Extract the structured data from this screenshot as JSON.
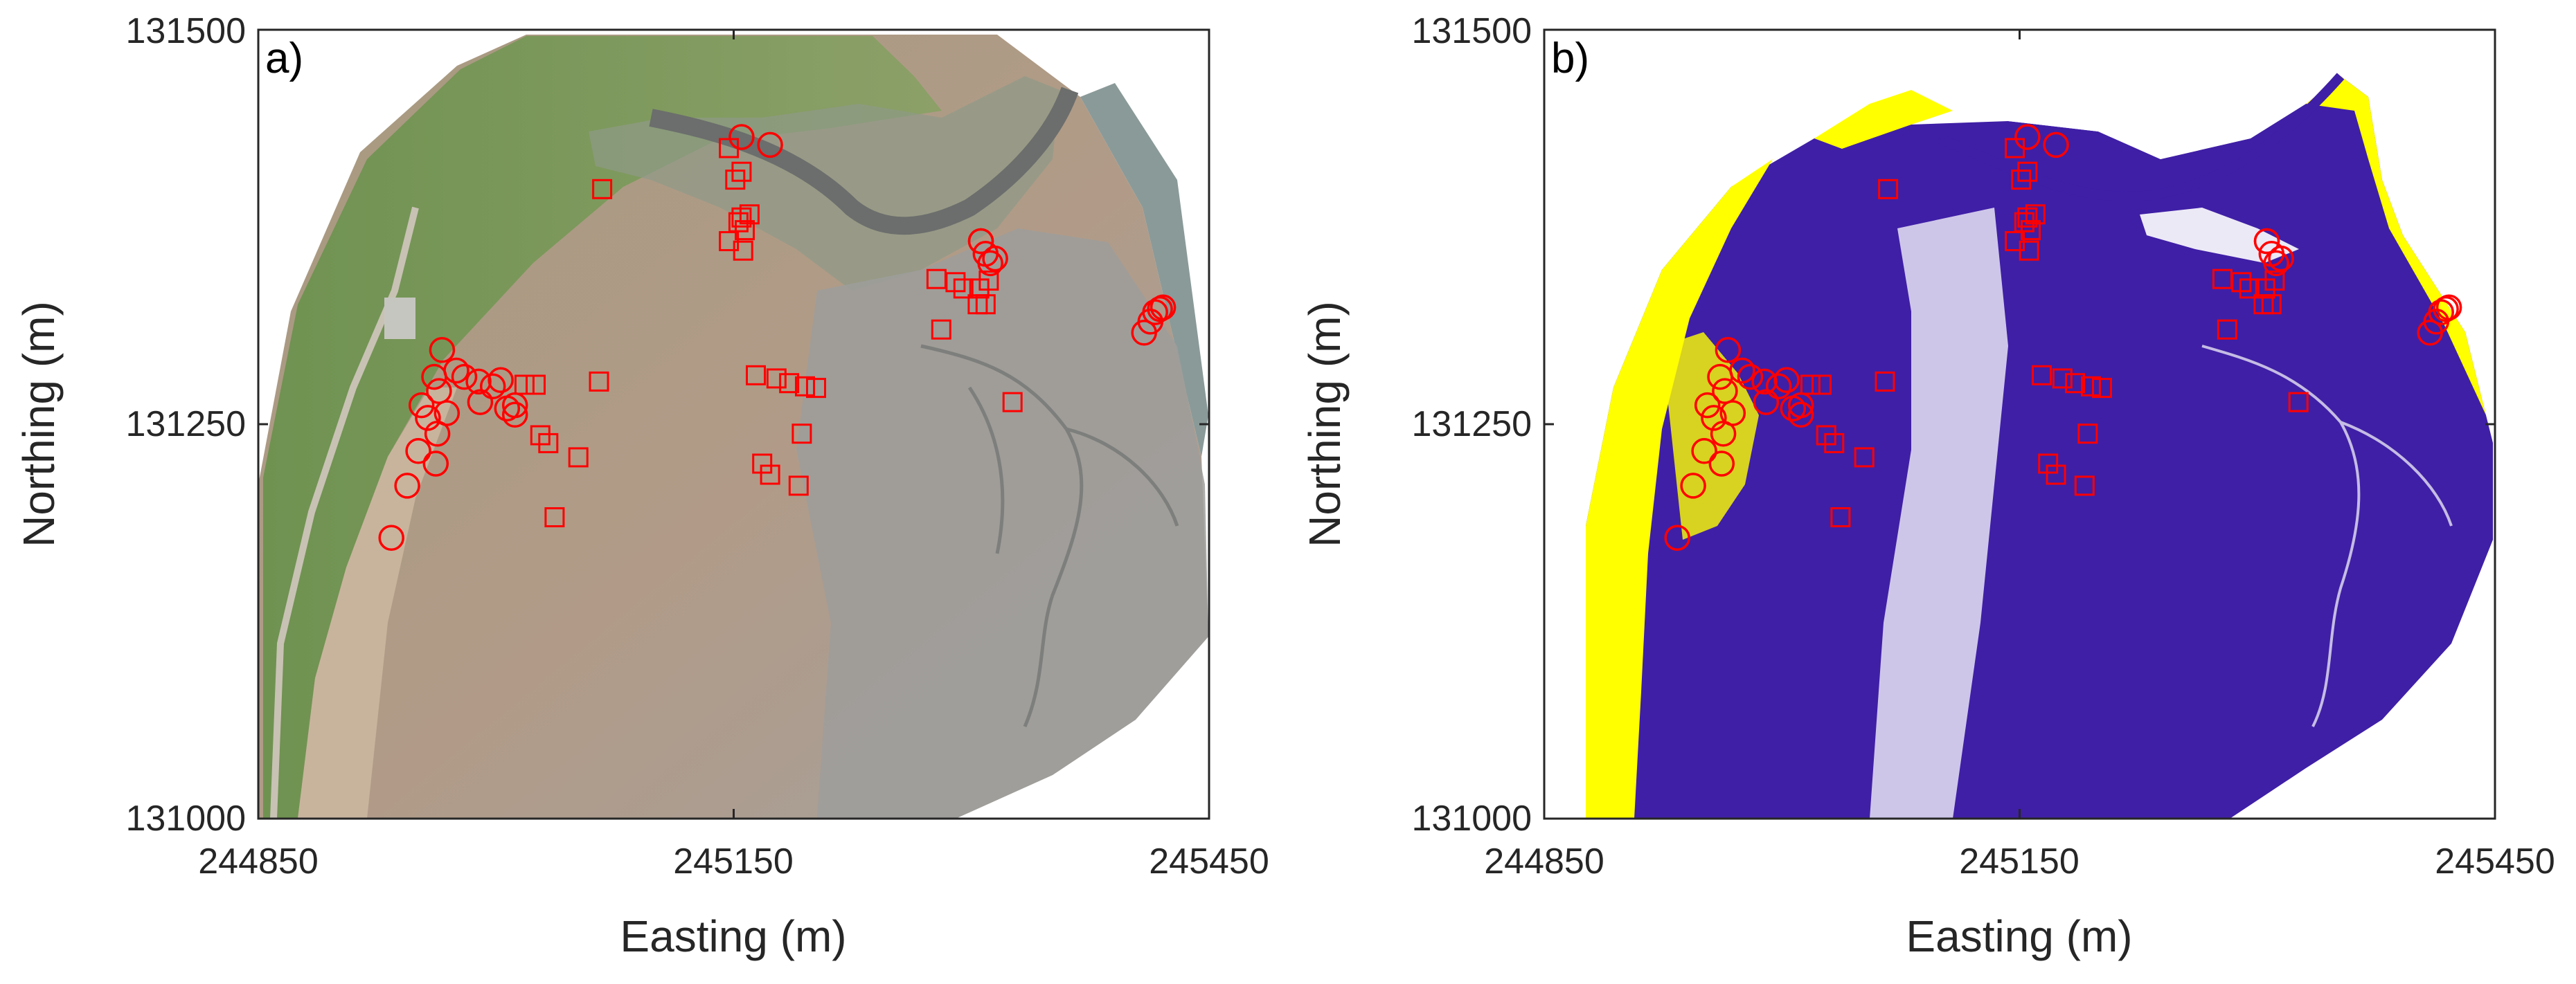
{
  "colors": {
    "marker": "#ff0000",
    "classified_primary": "#3f1fa6",
    "classified_secondary": "#ffff00",
    "photo_sand": "#b59e86",
    "photo_grass": "#7f9a5c",
    "photo_mud": "#9a9a98",
    "photo_water": "#8a9a98"
  },
  "chart_data": [
    {
      "type": "scatter",
      "panel": "a)",
      "background": "aerial photograph (RGB orthomosaic)",
      "xlabel": "Easting (m)",
      "ylabel": "Northing (m)",
      "xlim": [
        244850,
        245450
      ],
      "ylim": [
        131000,
        131500
      ],
      "xticks": [
        "244850",
        "245150",
        "245450"
      ],
      "yticks": [
        "131000",
        "131250",
        "131500"
      ],
      "grid": false,
      "legend": "none"
    },
    {
      "type": "scatter",
      "panel": "b)",
      "background": "classified image (two classes: dark blue and yellow)",
      "xlabel": "Easting (m)",
      "ylabel": "Northing (m)",
      "xlim": [
        244850,
        245450
      ],
      "ylim": [
        131000,
        131500
      ],
      "xticks": [
        "244850",
        "245150",
        "245450"
      ],
      "yticks": [
        "131000",
        "131250",
        "131500"
      ],
      "grid": false,
      "legend": "none"
    }
  ],
  "markers": {
    "circles": [
      [
        244934,
        131178
      ],
      [
        244944,
        131211
      ],
      [
        244951,
        131233
      ],
      [
        244953,
        131262
      ],
      [
        244957,
        131254
      ],
      [
        244961,
        131280
      ],
      [
        244962,
        131225
      ],
      [
        244963,
        131244
      ],
      [
        244964,
        131271
      ],
      [
        244966,
        131297
      ],
      [
        244969,
        131257
      ],
      [
        244975,
        131284
      ],
      [
        244980,
        131280
      ],
      [
        244989,
        131277
      ],
      [
        244990,
        131264
      ],
      [
        244998,
        131274
      ],
      [
        245003,
        131278
      ],
      [
        245007,
        131260
      ],
      [
        245012,
        131256
      ],
      [
        245012,
        131262
      ],
      [
        245155,
        131432
      ],
      [
        245173,
        131427
      ],
      [
        245306,
        131366
      ],
      [
        245306,
        131366
      ],
      [
        245309,
        131358
      ],
      [
        245312,
        131352
      ],
      [
        245315,
        131355
      ],
      [
        245409,
        131308
      ],
      [
        245413,
        131315
      ],
      [
        245416,
        131321
      ],
      [
        245419,
        131323
      ],
      [
        245421,
        131324
      ]
    ],
    "squares": [
      [
        245018,
        131275
      ],
      [
        245025,
        131275
      ],
      [
        245028,
        131243
      ],
      [
        245033,
        131238
      ],
      [
        245037,
        131191
      ],
      [
        245052,
        131229
      ],
      [
        245065,
        131277
      ],
      [
        245067,
        131399
      ],
      [
        245147,
        131425
      ],
      [
        245147,
        131366
      ],
      [
        245151,
        131405
      ],
      [
        245153,
        131378
      ],
      [
        245155,
        131410
      ],
      [
        245155,
        131381
      ],
      [
        245156,
        131360
      ],
      [
        245157,
        131373
      ],
      [
        245160,
        131383
      ],
      [
        245164,
        131281
      ],
      [
        245168,
        131225
      ],
      [
        245173,
        131218
      ],
      [
        245177,
        131279
      ],
      [
        245185,
        131276
      ],
      [
        245191,
        131211
      ],
      [
        245193,
        131244
      ],
      [
        245195,
        131274
      ],
      [
        245202,
        131273
      ],
      [
        245278,
        131342
      ],
      [
        245281,
        131310
      ],
      [
        245290,
        131340
      ],
      [
        245295,
        131336
      ],
      [
        245304,
        131326
      ],
      [
        245305,
        131336
      ],
      [
        245309,
        131326
      ],
      [
        245311,
        131341
      ],
      [
        245326,
        131264
      ]
    ]
  }
}
